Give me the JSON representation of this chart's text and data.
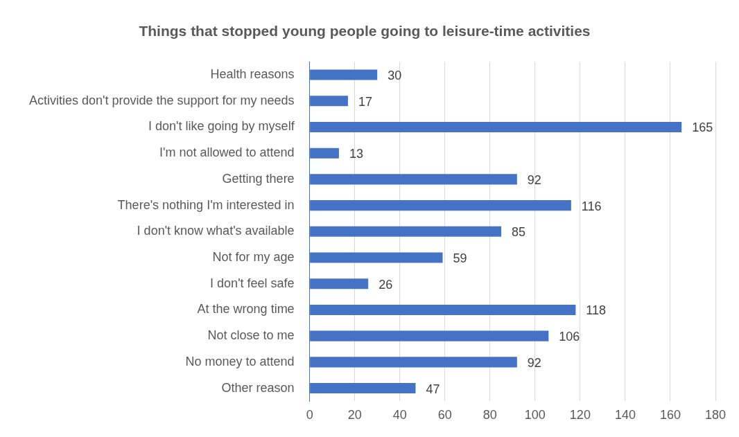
{
  "chart_data": {
    "type": "bar",
    "orientation": "horizontal",
    "title": "Things that stopped young people going to leisure-time activities",
    "categories": [
      "Health reasons",
      "Activities don't provide the support for my needs",
      "I don't like going by myself",
      "I'm not allowed to attend",
      "Getting there",
      "There's nothing I'm interested in",
      "I don't know what's available",
      "Not for my age",
      "I don't feel safe",
      "At the wrong time",
      "Not close to me",
      "No money to attend",
      "Other reason"
    ],
    "values": [
      30,
      17,
      165,
      13,
      92,
      116,
      85,
      59,
      26,
      118,
      106,
      92,
      47
    ],
    "color": "#4472c4",
    "xlim": [
      0,
      180
    ],
    "xticks": [
      0,
      20,
      40,
      60,
      80,
      100,
      120,
      140,
      160,
      180
    ],
    "grid": "x",
    "legend": false,
    "data_labels": true
  }
}
